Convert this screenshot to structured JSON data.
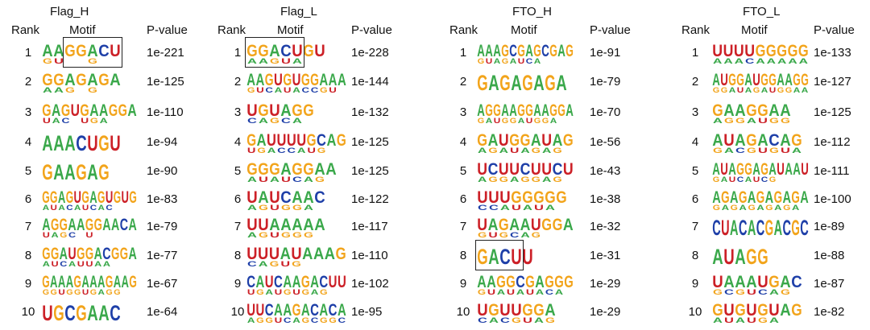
{
  "colors": {
    "A": "#3aa84a",
    "C": "#1e3fa8",
    "G": "#f2a41b",
    "U": "#cc2027"
  },
  "panels": [
    {
      "title": "Flag_H",
      "headers": {
        "rank": "Rank",
        "motif": "Motif",
        "pvalue": "P-value"
      },
      "rows": [
        {
          "rank": "1",
          "motif": "AAGGACU",
          "pvalue": "1e-221",
          "secondary": "GU  G"
        },
        {
          "rank": "2",
          "motif": "GGAGAGA",
          "pvalue": "1e-125",
          "secondary": "AAG G"
        },
        {
          "rank": "3",
          "motif": "GAGUGAAGGA",
          "pvalue": "1e-110",
          "secondary": "UAC UGA"
        },
        {
          "rank": "4",
          "motif": "AAACUGU",
          "pvalue": "1e-94",
          "secondary": ""
        },
        {
          "rank": "5",
          "motif": "GAAGAG",
          "pvalue": "1e-90",
          "secondary": ""
        },
        {
          "rank": "6",
          "motif": "GGAGUGAGUGUG",
          "pvalue": "1e-83",
          "secondary": "AUACAUCAC"
        },
        {
          "rank": "7",
          "motif": "AGGAAGGAACA",
          "pvalue": "1e-79",
          "secondary": "UAGC U"
        },
        {
          "rank": "8",
          "motif": "GGAUGGACGGA",
          "pvalue": "1e-77",
          "secondary": "AUCAUUAA"
        },
        {
          "rank": "9",
          "motif": "GAAAGAAAGAAG",
          "pvalue": "1e-67",
          "secondary": "GGUGGUGAGG"
        },
        {
          "rank": "10",
          "motif": "UGCGAAC",
          "pvalue": "1e-64",
          "secondary": ""
        }
      ]
    },
    {
      "title": "Flag_L",
      "headers": {
        "rank": "Rank",
        "motif": "Motif",
        "pvalue": "P-value"
      },
      "rows": [
        {
          "rank": "1",
          "motif": "GGACUGU",
          "pvalue": "1e-228",
          "secondary": "AAGUA"
        },
        {
          "rank": "2",
          "motif": "AAGUGUGGAAA",
          "pvalue": "1e-144",
          "secondary": "GUCAUACCGU"
        },
        {
          "rank": "3",
          "motif": "UGUAGG",
          "pvalue": "1e-132",
          "secondary": "CAGCA"
        },
        {
          "rank": "4",
          "motif": "GAUUUUGCAG",
          "pvalue": "1e-125",
          "secondary": "UGACCAUG"
        },
        {
          "rank": "5",
          "motif": "GGGAGGAA",
          "pvalue": "1e-125",
          "secondary": "AUAUCAG"
        },
        {
          "rank": "6",
          "motif": "UAUCAAC",
          "pvalue": "1e-122",
          "secondary": "AGUGGA"
        },
        {
          "rank": "7",
          "motif": "UUAAAAA",
          "pvalue": "1e-117",
          "secondary": "AGUGGG"
        },
        {
          "rank": "8",
          "motif": "UUUAUAAAG",
          "pvalue": "1e-110",
          "secondary": "CAGUG"
        },
        {
          "rank": "9",
          "motif": "CAUCAAGACUU",
          "pvalue": "1e-102",
          "secondary": "UGAUGUGAG"
        },
        {
          "rank": "10",
          "motif": "UUCAAGACACA",
          "pvalue": "1e-95",
          "secondary": "AGGUCAGCGGC"
        }
      ]
    },
    {
      "title": "FTO_H",
      "headers": {
        "rank": "Rank",
        "motif": "Motif",
        "pvalue": "P-value"
      },
      "rows": [
        {
          "rank": "1",
          "motif": "AAAGCGAGCGAG",
          "pvalue": "1e-91",
          "secondary": "GUAGAUCA"
        },
        {
          "rank": "2",
          "motif": "GAGAGAGA",
          "pvalue": "1e-79",
          "secondary": ""
        },
        {
          "rank": "3",
          "motif": "AGGAAGGAAGGA",
          "pvalue": "1e-70",
          "secondary": "GAUGGAUGGA"
        },
        {
          "rank": "4",
          "motif": "GAUGGAUAG",
          "pvalue": "1e-56",
          "secondary": "AGAUAGAG"
        },
        {
          "rank": "5",
          "motif": "UCUUCUUCU",
          "pvalue": "1e-43",
          "secondary": "AGGAGGAG"
        },
        {
          "rank": "6",
          "motif": "UUUGGGGG",
          "pvalue": "1e-38",
          "secondary": "CCAUAUA"
        },
        {
          "rank": "7",
          "motif": "UAGAAUGGA",
          "pvalue": "1e-32",
          "secondary": "GUGCAG"
        },
        {
          "rank": "8",
          "motif": "GACUU",
          "pvalue": "1e-31",
          "secondary": ""
        },
        {
          "rank": "9",
          "motif": "AAGGCGAGGG",
          "pvalue": "1e-29",
          "secondary": "GUAUAUACA"
        },
        {
          "rank": "10",
          "motif": "UGUUGGA",
          "pvalue": "1e-29",
          "secondary": "CACGUAG"
        }
      ]
    },
    {
      "title": "FTO_L",
      "headers": {
        "rank": "Rank",
        "motif": "Motif",
        "pvalue": "P-value"
      },
      "rows": [
        {
          "rank": "1",
          "motif": "UUUUGGGGG",
          "pvalue": "1e-133",
          "secondary": "AAACAAAAA"
        },
        {
          "rank": "2",
          "motif": "AUGGAUGGAAGG",
          "pvalue": "1e-127",
          "secondary": "GGAUAGAUGGAA"
        },
        {
          "rank": "3",
          "motif": "GAAGGAA",
          "pvalue": "1e-125",
          "secondary": "AGGAUGG"
        },
        {
          "rank": "4",
          "motif": "AUAGACAG",
          "pvalue": "1e-112",
          "secondary": "GACGUGUA"
        },
        {
          "rank": "5",
          "motif": "AUAGGAGAUAAU",
          "pvalue": "1e-111",
          "secondary": "GAUCAUCG"
        },
        {
          "rank": "6",
          "motif": "AGAGAGAGAGA",
          "pvalue": "1e-100",
          "secondary": "GAGAGAGAGA"
        },
        {
          "rank": "7",
          "motif": "CUACACGACGC",
          "pvalue": "1e-89",
          "secondary": ""
        },
        {
          "rank": "8",
          "motif": "AUAGG",
          "pvalue": "1e-88",
          "secondary": ""
        },
        {
          "rank": "9",
          "motif": "UAAAUGAC",
          "pvalue": "1e-87",
          "secondary": "GCGUCAG"
        },
        {
          "rank": "10",
          "motif": "GUGUGUAG",
          "pvalue": "1e-82",
          "secondary": "AUAUGA"
        }
      ]
    }
  ],
  "highlights": [
    {
      "panel": 0,
      "row": 0,
      "startIndex": 2,
      "length": 5
    },
    {
      "panel": 1,
      "row": 0,
      "startIndex": 0,
      "length": 5
    },
    {
      "panel": 2,
      "row": 7,
      "startIndex": 0,
      "length": 4
    }
  ]
}
